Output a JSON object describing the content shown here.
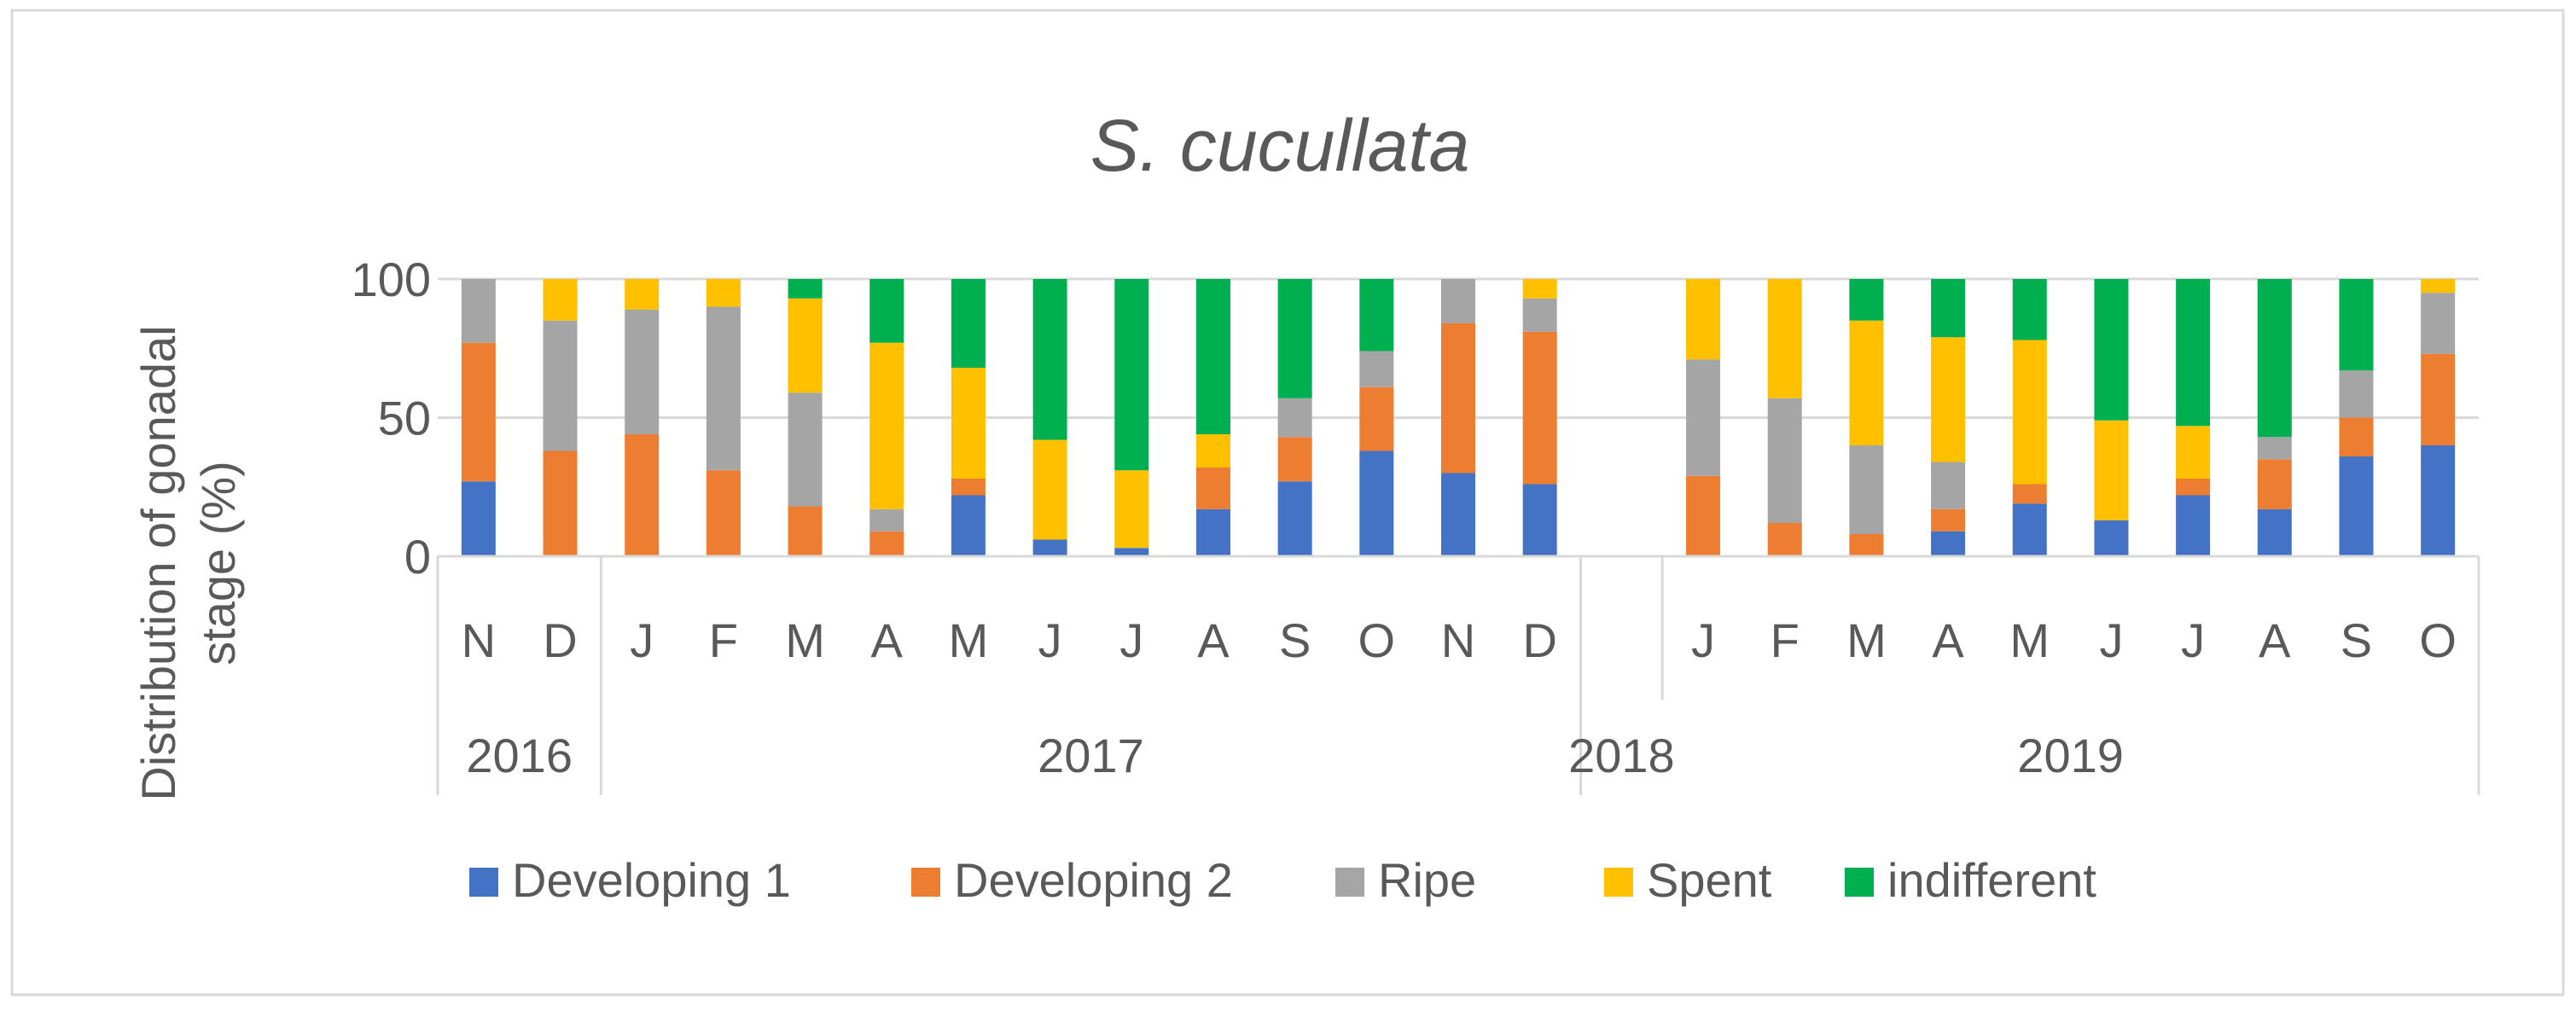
{
  "chart_data": {
    "type": "bar",
    "stacked": true,
    "title": "S. cucullata",
    "ylabel": "Distribution of gonadal stage (%)",
    "ylabel_lines": [
      "Distribution of gonadal",
      "stage (%)"
    ],
    "xlabel": "",
    "ylim": [
      0,
      100
    ],
    "yticks": [
      0,
      50,
      100
    ],
    "grid": true,
    "legend_position": "bottom",
    "categories": [
      "N",
      "D",
      "J",
      "F",
      "M",
      "A",
      "M",
      "J",
      "J",
      "A",
      "S",
      "O",
      "N",
      "D",
      "",
      "J",
      "F",
      "M",
      "A",
      "M",
      "J",
      "J",
      "A",
      "S",
      "O"
    ],
    "year_groups": [
      {
        "label": "2016",
        "count": 2
      },
      {
        "label": "2017",
        "count": 12
      },
      {
        "label": "2018",
        "count": 1
      },
      {
        "label": "2019",
        "count": 10
      }
    ],
    "series": [
      {
        "name": "Developing 1",
        "color": "#4472C4",
        "values": [
          27,
          0,
          0,
          0,
          0,
          0,
          22,
          6,
          3,
          17,
          27,
          38,
          30,
          26,
          0,
          0,
          0,
          0,
          9,
          19,
          13,
          22,
          17,
          36,
          40
        ]
      },
      {
        "name": "Developing 2",
        "color": "#ED7D31",
        "values": [
          50,
          38,
          44,
          31,
          18,
          9,
          6,
          0,
          0,
          15,
          16,
          23,
          54,
          55,
          0,
          29,
          12,
          8,
          8,
          7,
          0,
          6,
          18,
          14,
          33
        ]
      },
      {
        "name": "Ripe",
        "color": "#A5A5A5",
        "values": [
          23,
          47,
          45,
          59,
          41,
          8,
          0,
          0,
          0,
          0,
          14,
          13,
          16,
          12,
          0,
          42,
          45,
          32,
          17,
          0,
          0,
          0,
          8,
          17,
          22
        ]
      },
      {
        "name": "Spent",
        "color": "#FFC000",
        "values": [
          0,
          15,
          11,
          10,
          34,
          60,
          40,
          36,
          28,
          12,
          0,
          0,
          0,
          7,
          0,
          29,
          43,
          45,
          45,
          52,
          36,
          19,
          0,
          0,
          5
        ]
      },
      {
        "name": "indifferent",
        "color": "#00B050",
        "values": [
          0,
          0,
          0,
          0,
          7,
          23,
          32,
          58,
          69,
          56,
          43,
          26,
          0,
          0,
          0,
          0,
          0,
          15,
          21,
          22,
          51,
          53,
          57,
          33,
          0
        ]
      }
    ]
  }
}
